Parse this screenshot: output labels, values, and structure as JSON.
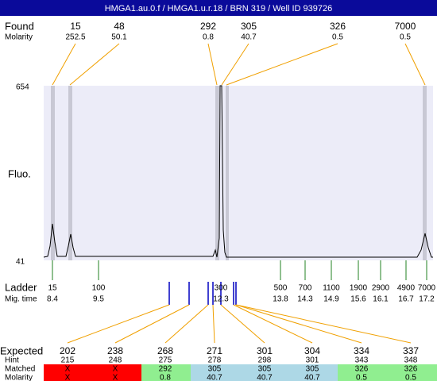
{
  "header": {
    "title": "HMGA1.au.0.f / HMGA1.u.r.18 / BRN 319 / Well ID 939726"
  },
  "found": {
    "label": "Found",
    "molarity_label": "Molarity",
    "peaks": [
      {
        "size": 15,
        "molarity": 252.5
      },
      {
        "size": 48,
        "molarity": 50.1
      },
      {
        "size": 292,
        "molarity": 0.8
      },
      {
        "size": 305,
        "molarity": 40.7
      },
      {
        "size": 326,
        "molarity": 0.5
      },
      {
        "size": 7000,
        "molarity": 0.5
      }
    ]
  },
  "plot": {
    "y_axis_label": "Fluo.",
    "y_max": 654,
    "y_min": 41
  },
  "ladder": {
    "label": "Ladder",
    "time_label": "Mig. time",
    "bands": [
      {
        "size": 15,
        "time": 8.4
      },
      {
        "size": 100,
        "time": 9.5
      },
      {
        "size": 300,
        "time": 12.3
      },
      {
        "size": 500,
        "time": 13.8
      },
      {
        "size": 700,
        "time": 14.3
      },
      {
        "size": 1100,
        "time": 14.9
      },
      {
        "size": 1900,
        "time": 15.6
      },
      {
        "size": 2900,
        "time": 16.1
      },
      {
        "size": 4900,
        "time": 16.7
      },
      {
        "size": 7000,
        "time": 17.2
      }
    ]
  },
  "expected": {
    "label": "Expected",
    "hint_label": "Hint",
    "matched_label": "Matched",
    "molarity_label": "Molarity",
    "rows": [
      {
        "expected": 202,
        "hint": 215,
        "matched": "X",
        "molarity": "X"
      },
      {
        "expected": 238,
        "hint": 248,
        "matched": "X",
        "molarity": "X"
      },
      {
        "expected": 268,
        "hint": 275,
        "matched": 292,
        "molarity": 0.8
      },
      {
        "expected": 271,
        "hint": 278,
        "matched": 305,
        "molarity": 40.7
      },
      {
        "expected": 301,
        "hint": 298,
        "matched": 305,
        "molarity": 40.7
      },
      {
        "expected": 304,
        "hint": 301,
        "matched": 305,
        "molarity": 40.7
      },
      {
        "expected": 334,
        "hint": 343,
        "matched": 326,
        "molarity": 0.5
      },
      {
        "expected": 337,
        "hint": 348,
        "matched": 326,
        "molarity": 0.5
      }
    ]
  }
}
